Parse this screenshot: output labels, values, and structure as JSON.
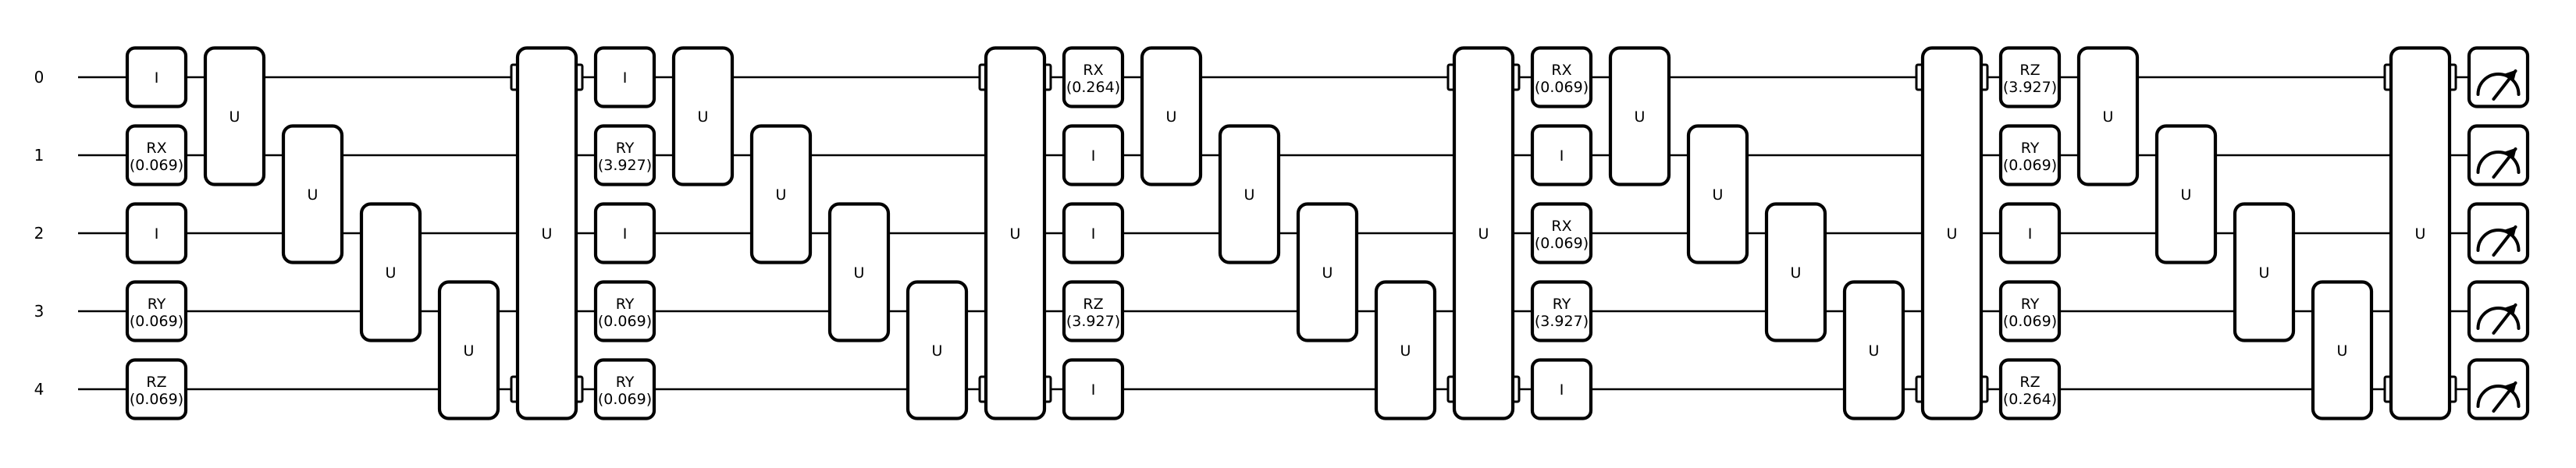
{
  "wires": [
    "0",
    "1",
    "2",
    "3",
    "4"
  ],
  "multi_qubit_label": "U",
  "blocks": [
    {
      "single": [
        {
          "name": "I",
          "param": ""
        },
        {
          "name": "RX",
          "param": "(0.069)"
        },
        {
          "name": "I",
          "param": ""
        },
        {
          "name": "RY",
          "param": "(0.069)"
        },
        {
          "name": "RZ",
          "param": "(0.069)"
        }
      ]
    },
    {
      "single": [
        {
          "name": "I",
          "param": ""
        },
        {
          "name": "RY",
          "param": "(3.927)"
        },
        {
          "name": "I",
          "param": ""
        },
        {
          "name": "RY",
          "param": "(0.069)"
        },
        {
          "name": "RY",
          "param": "(0.069)"
        }
      ]
    },
    {
      "single": [
        {
          "name": "RX",
          "param": "(0.264)"
        },
        {
          "name": "I",
          "param": ""
        },
        {
          "name": "I",
          "param": ""
        },
        {
          "name": "RZ",
          "param": "(3.927)"
        },
        {
          "name": "I",
          "param": ""
        }
      ]
    },
    {
      "single": [
        {
          "name": "RX",
          "param": "(0.069)"
        },
        {
          "name": "I",
          "param": ""
        },
        {
          "name": "RX",
          "param": "(0.069)"
        },
        {
          "name": "RY",
          "param": "(3.927)"
        },
        {
          "name": "I",
          "param": ""
        }
      ]
    },
    {
      "single": [
        {
          "name": "RZ",
          "param": "(3.927)"
        },
        {
          "name": "RY",
          "param": "(0.069)"
        },
        {
          "name": "I",
          "param": ""
        },
        {
          "name": "RY",
          "param": "(0.069)"
        },
        {
          "name": "RZ",
          "param": "(0.264)"
        }
      ]
    }
  ],
  "measurement_icon": "measurement-meter-icon"
}
